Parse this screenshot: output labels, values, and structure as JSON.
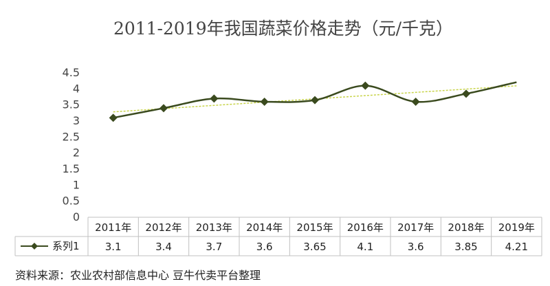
{
  "chart_data": {
    "type": "line",
    "title": "2011-2019年我国蔬菜价格走势（元/千克）",
    "categories": [
      "2011年",
      "2012年",
      "2013年",
      "2014年",
      "2015年",
      "2016年",
      "2017年",
      "2018年",
      "2019年"
    ],
    "series": [
      {
        "name": "系列1",
        "values": [
          3.1,
          3.4,
          3.7,
          3.6,
          3.65,
          4.1,
          3.6,
          3.85,
          4.21
        ]
      }
    ],
    "y_ticks": [
      "0",
      "0.5",
      "1",
      "1.5",
      "2",
      "2.5",
      "3",
      "3.5",
      "4",
      "4.5"
    ],
    "ylim": [
      0,
      4.5
    ],
    "trendline": "linear",
    "grid": false,
    "legend": "data-table",
    "colors": {
      "series": "#3a4a1e",
      "trendline": "#c8d44a",
      "table_border": "#c0c0c0"
    }
  },
  "source_note": "资料来源：农业农村部信息中心    豆牛代卖平台整理"
}
